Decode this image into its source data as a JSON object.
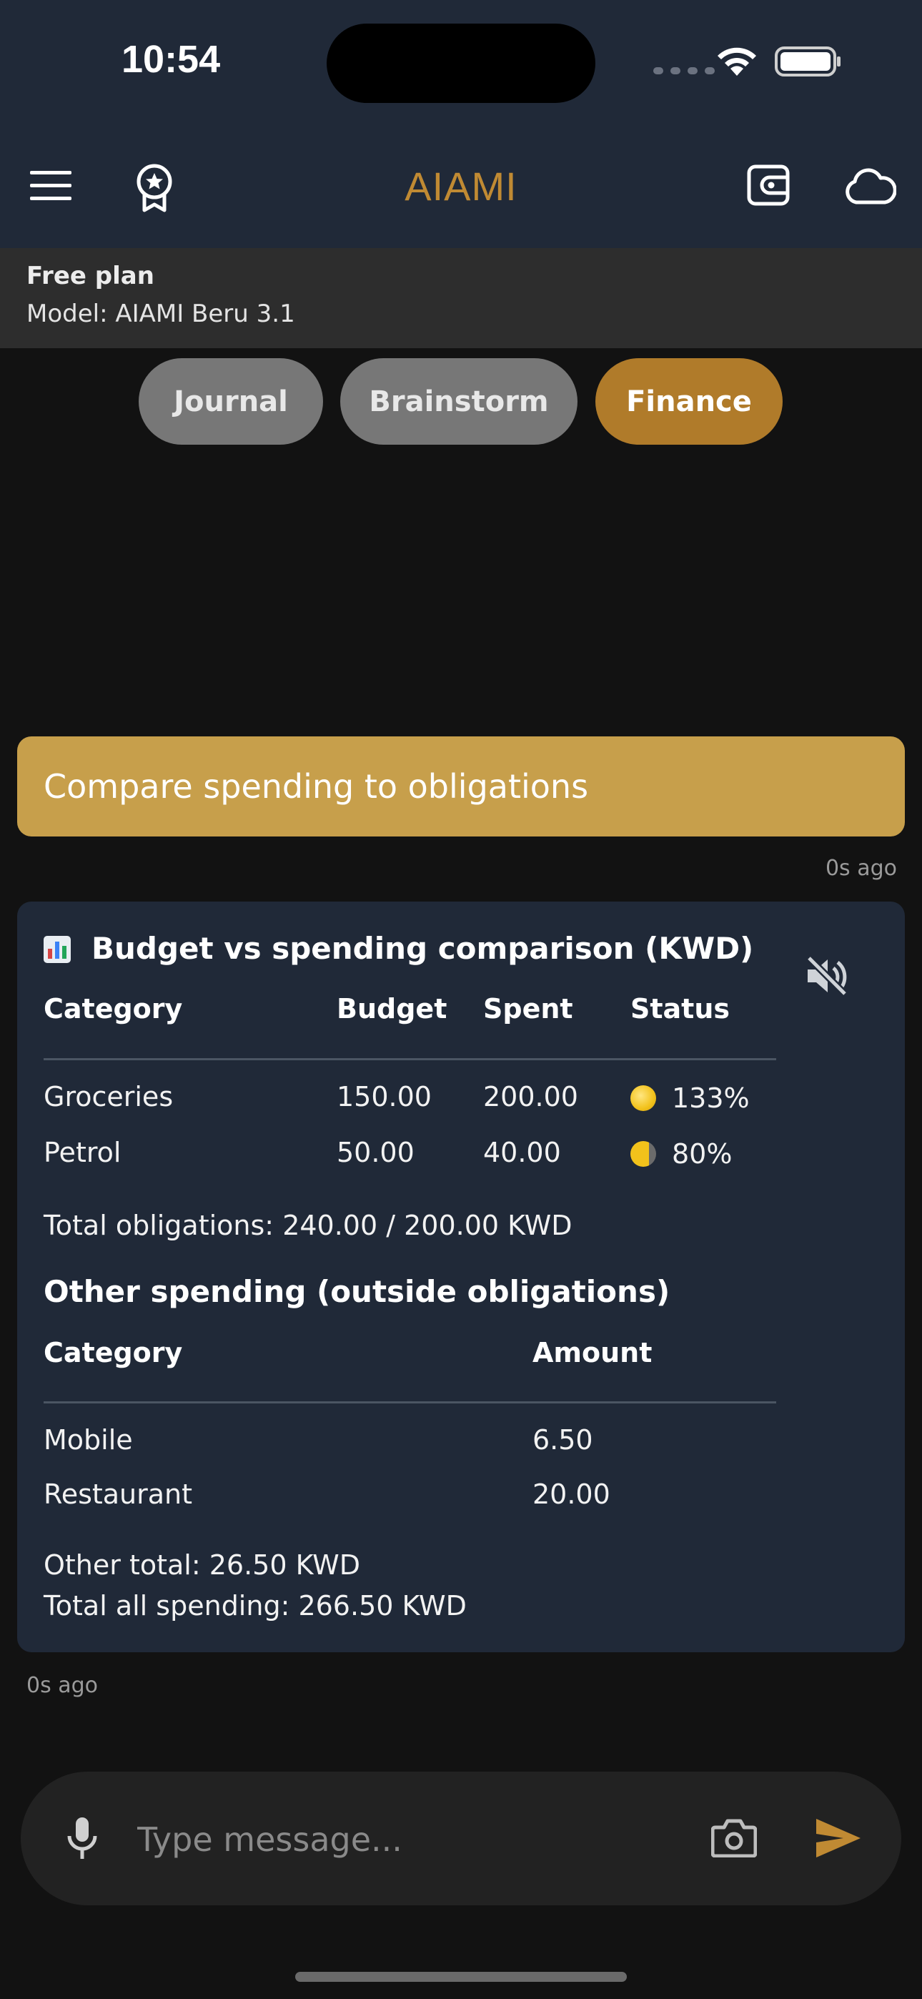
{
  "status_bar": {
    "time": "10:54"
  },
  "header": {
    "title": "AIAMI"
  },
  "plan": {
    "title": "Free plan",
    "model": "Model: AIAMI Beru 3.1"
  },
  "tabs": [
    {
      "label": "Journal",
      "active": false
    },
    {
      "label": "Brainstorm",
      "active": false
    },
    {
      "label": "Finance",
      "active": true
    }
  ],
  "colors": {
    "accent": "#b07b2a",
    "user_bubble": "#c79f4b",
    "card": "#202938",
    "background": "#121212"
  },
  "user_message": {
    "text": "Compare spending to obligations",
    "time": "0s ago"
  },
  "ai_message": {
    "emoji": "📊",
    "title": "Budget vs spending comparison (KWD)",
    "table1": {
      "headers": [
        "Category",
        "Budget",
        "Spent",
        "Status"
      ],
      "rows": [
        {
          "category": "Groceries",
          "budget": "150.00",
          "spent": "200.00",
          "status_icon": "full-moon",
          "status": "133%"
        },
        {
          "category": "Petrol",
          "budget": "50.00",
          "spent": "40.00",
          "status_icon": "waning-gibbous-moon",
          "status": "80%"
        }
      ]
    },
    "total_obligations": "Total obligations: 240.00 / 200.00 KWD",
    "other_heading": "Other spending (outside obligations)",
    "table2": {
      "headers": [
        "Category",
        "Amount"
      ],
      "rows": [
        {
          "category": "Mobile",
          "amount": "6.50"
        },
        {
          "category": "Restaurant",
          "amount": "20.00"
        }
      ]
    },
    "other_total": "Other total: 26.50 KWD",
    "total_all": "Total all spending: 266.50 KWD",
    "time": "0s ago"
  },
  "composer": {
    "placeholder": "Type message..."
  }
}
